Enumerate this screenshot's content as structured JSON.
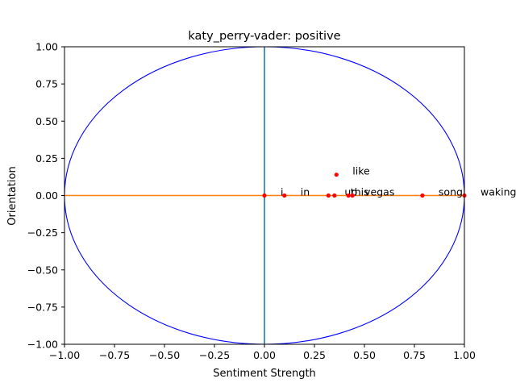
{
  "chart_data": {
    "type": "scatter",
    "title": "katy_perry-vader: positive",
    "xlabel": "Sentiment Strength",
    "ylabel": "Orientation",
    "xlim": [
      -1.0,
      1.0
    ],
    "ylim": [
      -1.0,
      1.0
    ],
    "xticks": [
      -1.0,
      -0.75,
      -0.5,
      -0.25,
      0.0,
      0.25,
      0.5,
      0.75,
      1.0
    ],
    "yticks": [
      -1.0,
      -0.75,
      -0.5,
      -0.25,
      0.0,
      0.25,
      0.5,
      0.75,
      1.0
    ],
    "xtick_labels": [
      "−1.00",
      "−0.75",
      "−0.50",
      "−0.25",
      "0.00",
      "0.25",
      "0.50",
      "0.75",
      "1.00"
    ],
    "ytick_labels": [
      "−1.00",
      "−0.75",
      "−0.50",
      "−0.25",
      "0.00",
      "0.25",
      "0.50",
      "0.75",
      "1.00"
    ],
    "grid": false,
    "legend": "none",
    "unit_circle": {
      "color": "#0000ff"
    },
    "vertical_line": {
      "x": 0.0,
      "color": "#1f77b4"
    },
    "horizontal_line": {
      "y": 0.0,
      "color": "#ff7f0e"
    },
    "point_color": "#ff0000",
    "points": [
      {
        "label": "i",
        "x": 0.0,
        "y": 0.0
      },
      {
        "label": "in",
        "x": 0.1,
        "y": 0.0
      },
      {
        "label": "up",
        "x": 0.32,
        "y": 0.0
      },
      {
        "label": "this",
        "x": 0.35,
        "y": 0.0
      },
      {
        "label": "vegas",
        "x": 0.42,
        "y": 0.0
      },
      {
        "label": "",
        "x": 0.44,
        "y": 0.0
      },
      {
        "label": "like",
        "x": 0.36,
        "y": 0.14
      },
      {
        "label": "song",
        "x": 0.79,
        "y": 0.0
      },
      {
        "label": "waking",
        "x": 1.0,
        "y": 0.0
      }
    ]
  }
}
